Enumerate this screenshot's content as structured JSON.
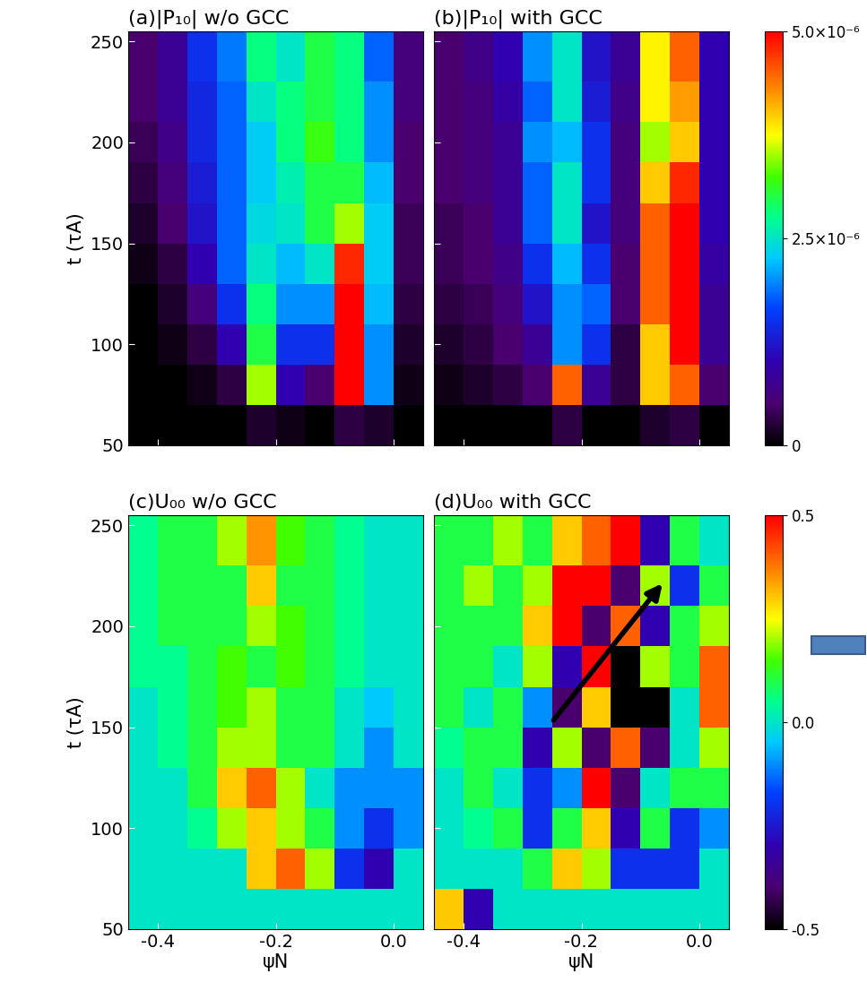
{
  "chart_data": [
    {
      "type": "heatmap",
      "title": "(a)|P₁₀| w/o GCC",
      "y_label": "t (τA)",
      "xlim": [
        -0.45,
        0.05
      ],
      "ylim": [
        50,
        255
      ],
      "xticks": [
        -0.4,
        -0.2,
        0.0
      ],
      "yticks": [
        50,
        100,
        150,
        200,
        250
      ],
      "tick_labels": "y",
      "x_bins": [
        -0.45,
        -0.4,
        -0.35,
        -0.3,
        -0.25,
        -0.2,
        -0.15,
        -0.1,
        -0.05,
        0.0,
        0.05
      ],
      "y_bins": [
        50,
        70,
        90,
        110,
        130,
        150,
        170,
        190,
        210,
        230,
        255
      ],
      "cells": [
        [
          0,
          0,
          0,
          0,
          2e-07,
          1e-07,
          0,
          3e-07,
          2e-07,
          0
        ],
        [
          0,
          0,
          1e-07,
          3e-07,
          3.5e-06,
          1e-06,
          5e-07,
          5e-06,
          2e-06,
          1e-07
        ],
        [
          0,
          1e-07,
          3e-07,
          1e-06,
          3e-06,
          1.5e-06,
          1.5e-06,
          5e-06,
          2e-06,
          2e-07
        ],
        [
          0,
          2e-07,
          6e-07,
          1.5e-06,
          2.8e-06,
          2e-06,
          2e-06,
          5e-06,
          2.2e-06,
          3e-07
        ],
        [
          1e-07,
          3e-07,
          1e-06,
          1.8e-06,
          2.5e-06,
          2.2e-06,
          2.5e-06,
          4.8e-06,
          2.3e-06,
          4e-07
        ],
        [
          2e-07,
          5e-07,
          1.2e-06,
          1.8e-06,
          2.4e-06,
          2.5e-06,
          3e-06,
          3.5e-06,
          2.3e-06,
          4e-07
        ],
        [
          3e-07,
          6e-07,
          1.3e-06,
          1.8e-06,
          2.3e-06,
          2.6e-06,
          3e-06,
          3e-06,
          2.2e-06,
          5e-07
        ],
        [
          4e-07,
          7e-07,
          1.4e-06,
          1.8e-06,
          2.3e-06,
          2.8e-06,
          3.2e-06,
          2.8e-06,
          2e-06,
          5e-07
        ],
        [
          5e-07,
          8e-07,
          1.4e-06,
          1.8e-06,
          2.5e-06,
          2.8e-06,
          3e-06,
          2.8e-06,
          2e-06,
          6e-07
        ],
        [
          5e-07,
          8e-07,
          1.5e-06,
          1.9e-06,
          2.8e-06,
          2.5e-06,
          3e-06,
          2.8e-06,
          1.8e-06,
          6e-07
        ]
      ]
    },
    {
      "type": "heatmap",
      "title": "(b)|P₁₀| with GCC",
      "xlim": [
        -0.45,
        0.05
      ],
      "ylim": [
        50,
        255
      ],
      "xticks": [
        -0.4,
        -0.2,
        0.0
      ],
      "yticks": [
        50,
        100,
        150,
        200,
        250
      ],
      "tick_labels": false,
      "x_bins": [
        -0.45,
        -0.4,
        -0.35,
        -0.3,
        -0.25,
        -0.2,
        -0.15,
        -0.1,
        -0.05,
        0.0,
        0.05
      ],
      "y_bins": [
        50,
        70,
        90,
        110,
        130,
        150,
        170,
        190,
        210,
        230,
        255
      ],
      "cells": [
        [
          0,
          0,
          0,
          0,
          3e-07,
          0,
          0,
          2e-07,
          3e-07,
          0
        ],
        [
          1e-07,
          2e-07,
          3e-07,
          5e-07,
          4.5e-06,
          8e-07,
          3e-07,
          4e-06,
          4.5e-06,
          5e-07
        ],
        [
          2e-07,
          3e-07,
          5e-07,
          8e-07,
          2e-06,
          1.5e-06,
          3e-07,
          4e-06,
          5e-06,
          8e-07
        ],
        [
          3e-07,
          4e-07,
          6e-07,
          1.2e-06,
          2e-06,
          1.8e-06,
          5e-07,
          4.5e-06,
          5e-06,
          8e-07
        ],
        [
          4e-07,
          5e-07,
          7e-07,
          1.5e-06,
          2.2e-06,
          1.5e-06,
          5e-07,
          4.5e-06,
          5e-06,
          9e-07
        ],
        [
          4e-07,
          5e-07,
          8e-07,
          1.8e-06,
          2.5e-06,
          1.2e-06,
          6e-07,
          4.5e-06,
          5e-06,
          1e-06
        ],
        [
          5e-07,
          6e-07,
          8e-07,
          1.8e-06,
          2.5e-06,
          1.5e-06,
          6e-07,
          4e-06,
          4.8e-06,
          1e-06
        ],
        [
          5e-07,
          6e-07,
          8e-07,
          2e-06,
          2.2e-06,
          1.5e-06,
          6e-07,
          3.5e-06,
          4e-06,
          1e-06
        ],
        [
          5e-07,
          6e-07,
          9e-07,
          1.8e-06,
          2.5e-06,
          1.3e-06,
          7e-07,
          3.8e-06,
          4.2e-06,
          1e-06
        ],
        [
          5e-07,
          7e-07,
          1e-06,
          2e-06,
          2.5e-06,
          1.2e-06,
          8e-07,
          3.8e-06,
          4.5e-06,
          1e-06
        ]
      ],
      "colorbar": {
        "range": [
          0,
          5e-06
        ],
        "ticks": [
          0,
          {
            "value": 2.5e-06,
            "label": "2.5×10⁻⁶"
          },
          {
            "value": 5e-06,
            "label": "5.0×10⁻⁶"
          }
        ]
      }
    },
    {
      "type": "heatmap",
      "title": "(c)U₀₀ w/o GCC",
      "x_label": "ψN",
      "y_label": "t (τA)",
      "xlim": [
        -0.45,
        0.05
      ],
      "ylim": [
        50,
        255
      ],
      "xticks": [
        -0.4,
        -0.2,
        0.0
      ],
      "yticks": [
        50,
        100,
        150,
        200,
        250
      ],
      "x_bins": [
        -0.45,
        -0.4,
        -0.35,
        -0.3,
        -0.25,
        -0.2,
        -0.15,
        -0.1,
        -0.05,
        0.0,
        0.05
      ],
      "y_bins": [
        50,
        70,
        90,
        110,
        130,
        150,
        170,
        190,
        210,
        230,
        255
      ],
      "cells": [
        [
          0,
          0,
          0,
          0,
          0,
          0,
          0,
          0,
          0,
          0
        ],
        [
          0,
          0,
          0,
          0,
          0.3,
          0.4,
          0.2,
          -0.2,
          -0.3,
          0
        ],
        [
          0,
          0,
          0.05,
          0.2,
          0.3,
          0.2,
          0.1,
          -0.1,
          -0.2,
          -0.1
        ],
        [
          0,
          0,
          0.1,
          0.3,
          0.4,
          0.2,
          0,
          -0.1,
          -0.1,
          -0.1
        ],
        [
          0,
          0.05,
          0.1,
          0.2,
          0.2,
          0.1,
          0.1,
          0,
          -0.1,
          0
        ],
        [
          0,
          0.05,
          0.1,
          0.15,
          0.2,
          0.1,
          0.1,
          0,
          -0.05,
          0
        ],
        [
          0.05,
          0.05,
          0.1,
          0.15,
          0.1,
          0.15,
          0.1,
          0.05,
          0,
          0
        ],
        [
          0.05,
          0.1,
          0.1,
          0.1,
          0.2,
          0.15,
          0.1,
          0.05,
          0,
          0
        ],
        [
          0.05,
          0.1,
          0.1,
          0.1,
          0.3,
          0.1,
          0.1,
          0.05,
          0,
          0
        ],
        [
          0.05,
          0.1,
          0.1,
          0.2,
          0.35,
          0.15,
          0.1,
          0.05,
          0,
          0
        ]
      ]
    },
    {
      "type": "heatmap",
      "title": "(d)U₀₀ with GCC",
      "x_label": "ψN",
      "xlim": [
        -0.45,
        0.05
      ],
      "ylim": [
        50,
        255
      ],
      "xticks": [
        -0.4,
        -0.2,
        0.0
      ],
      "yticks": [
        50,
        100,
        150,
        200,
        250
      ],
      "tick_labels": "x",
      "x_bins": [
        -0.45,
        -0.4,
        -0.35,
        -0.3,
        -0.25,
        -0.2,
        -0.15,
        -0.1,
        -0.05,
        0.0,
        0.05
      ],
      "y_bins": [
        50,
        70,
        90,
        110,
        130,
        150,
        170,
        190,
        210,
        230,
        255
      ],
      "cells": [
        [
          0.3,
          -0.3,
          0,
          0,
          0,
          0,
          0,
          0,
          0,
          0
        ],
        [
          0,
          0,
          0,
          0.1,
          0.3,
          0.2,
          -0.2,
          -0.2,
          -0.2,
          0
        ],
        [
          0,
          0.05,
          0.1,
          -0.2,
          0.1,
          0.3,
          -0.3,
          0.1,
          -0.2,
          -0.1
        ],
        [
          0,
          0.1,
          0,
          -0.2,
          -0.1,
          0.5,
          -0.4,
          0,
          0.1,
          0.1
        ],
        [
          0.05,
          0.1,
          0.1,
          -0.3,
          0.2,
          -0.4,
          0.4,
          -0.4,
          0,
          0.2
        ],
        [
          0.1,
          0,
          0.1,
          -0.1,
          -0.4,
          0.3,
          -0.5,
          -0.5,
          0,
          0.4
        ],
        [
          0.1,
          0.1,
          0,
          0.2,
          -0.3,
          0.5,
          -0.5,
          0.2,
          0.1,
          0.4
        ],
        [
          0.1,
          0.1,
          0.1,
          0.3,
          0.5,
          -0.4,
          0.4,
          -0.3,
          0.1,
          0.2
        ],
        [
          0.1,
          0.2,
          0.1,
          0.2,
          0.5,
          0.5,
          -0.4,
          0.2,
          -0.2,
          0.1
        ],
        [
          0.1,
          0.1,
          0.2,
          0.1,
          0.3,
          0.4,
          0.5,
          -0.3,
          0.1,
          0
        ]
      ],
      "colorbar": {
        "range": [
          -0.5,
          0.5
        ],
        "ticks": [
          -0.5,
          0.0,
          0.5
        ]
      }
    }
  ]
}
